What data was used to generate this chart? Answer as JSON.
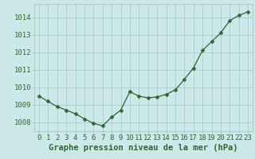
{
  "x": [
    0,
    1,
    2,
    3,
    4,
    5,
    6,
    7,
    8,
    9,
    10,
    11,
    12,
    13,
    14,
    15,
    16,
    17,
    18,
    19,
    20,
    21,
    22,
    23
  ],
  "y": [
    1009.5,
    1009.2,
    1008.9,
    1008.7,
    1008.5,
    1008.2,
    1007.95,
    1007.8,
    1008.3,
    1008.7,
    1009.75,
    1009.5,
    1009.4,
    1009.45,
    1009.6,
    1009.85,
    1010.45,
    1011.1,
    1012.1,
    1012.6,
    1013.1,
    1013.8,
    1014.1,
    1014.3
  ],
  "line_color": "#2d6a2d",
  "marker": "D",
  "marker_size": 2.5,
  "bg_color": "#cde8e8",
  "grid_color": "#aacccc",
  "ylabel_ticks": [
    1008,
    1009,
    1010,
    1011,
    1012,
    1013,
    1014
  ],
  "xlabel": "Graphe pression niveau de la mer (hPa)",
  "xlabel_color": "#2d6a2d",
  "xlabel_fontsize": 7.5,
  "tick_label_color": "#2d6a2d",
  "tick_label_fontsize": 6.5,
  "ylim": [
    1007.5,
    1014.75
  ],
  "xlim": [
    -0.5,
    23.5
  ],
  "xticks": [
    0,
    1,
    2,
    3,
    4,
    5,
    6,
    7,
    8,
    9,
    10,
    11,
    12,
    13,
    14,
    15,
    16,
    17,
    18,
    19,
    20,
    21,
    22,
    23
  ]
}
